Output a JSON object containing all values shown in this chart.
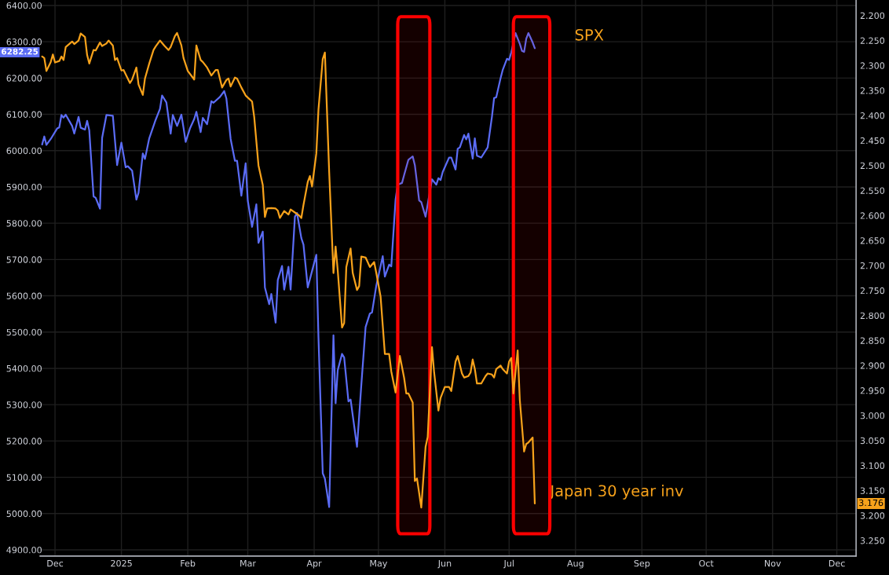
{
  "chart_data": {
    "type": "line",
    "xlim": [
      "2024-11-24",
      "2025-12-10"
    ],
    "xticks": [
      {
        "value": "2024-12-01",
        "label": "Dec"
      },
      {
        "value": "2025-01-01",
        "label": "2025"
      },
      {
        "value": "2025-02-01",
        "label": "Feb"
      },
      {
        "value": "2025-03-01",
        "label": "Mar"
      },
      {
        "value": "2025-04-01",
        "label": "Apr"
      },
      {
        "value": "2025-05-01",
        "label": "May"
      },
      {
        "value": "2025-06-01",
        "label": "Jun"
      },
      {
        "value": "2025-07-01",
        "label": "Jul"
      },
      {
        "value": "2025-08-01",
        "label": "Aug"
      },
      {
        "value": "2025-09-01",
        "label": "Sep"
      },
      {
        "value": "2025-10-01",
        "label": "Oct"
      },
      {
        "value": "2025-11-01",
        "label": "Nov"
      },
      {
        "value": "2025-12-01",
        "label": "Dec"
      }
    ],
    "ylim": [
      4883,
      6415
    ],
    "yticks": [
      {
        "value": 4900,
        "label": "4900.00"
      },
      {
        "value": 5000,
        "label": "5000.00"
      },
      {
        "value": 5100,
        "label": "5100.00"
      },
      {
        "value": 5200,
        "label": "5200.00"
      },
      {
        "value": 5300,
        "label": "5300.00"
      },
      {
        "value": 5400,
        "label": "5400.00"
      },
      {
        "value": 5500,
        "label": "5500.00"
      },
      {
        "value": 5600,
        "label": "5600.00"
      },
      {
        "value": 5700,
        "label": "5700.00"
      },
      {
        "value": 5800,
        "label": "5800.00"
      },
      {
        "value": 5900,
        "label": "5900.00"
      },
      {
        "value": 6000,
        "label": "6000.00"
      },
      {
        "value": 6100,
        "label": "6100.00"
      },
      {
        "value": 6200,
        "label": "6200.00"
      },
      {
        "value": 6300,
        "label": "6300.00"
      },
      {
        "value": 6400,
        "label": "6400.00"
      }
    ],
    "y2lim": [
      3.281,
      2.169
    ],
    "y2ticks": [
      {
        "value": 2.2,
        "label": "2.200"
      },
      {
        "value": 2.25,
        "label": "2.250"
      },
      {
        "value": 2.3,
        "label": "2.300"
      },
      {
        "value": 2.35,
        "label": "2.350"
      },
      {
        "value": 2.4,
        "label": "2.400"
      },
      {
        "value": 2.45,
        "label": "2.450"
      },
      {
        "value": 2.5,
        "label": "2.500"
      },
      {
        "value": 2.55,
        "label": "2.550"
      },
      {
        "value": 2.6,
        "label": "2.600"
      },
      {
        "value": 2.65,
        "label": "2.650"
      },
      {
        "value": 2.7,
        "label": "2.700"
      },
      {
        "value": 2.75,
        "label": "2.750"
      },
      {
        "value": 2.8,
        "label": "2.800"
      },
      {
        "value": 2.85,
        "label": "2.850"
      },
      {
        "value": 2.9,
        "label": "2.900"
      },
      {
        "value": 2.95,
        "label": "2.950"
      },
      {
        "value": 3.0,
        "label": "3.000"
      },
      {
        "value": 3.05,
        "label": "3.050"
      },
      {
        "value": 3.1,
        "label": "3.100"
      },
      {
        "value": 3.15,
        "label": "3.150"
      },
      {
        "value": 3.2,
        "label": "3.200"
      },
      {
        "value": 3.25,
        "label": "3.250"
      }
    ],
    "grid": true,
    "bands": [
      {
        "axis": "x",
        "from": "2025-05-10",
        "to": "2025-05-25",
        "color": "#ff0000"
      },
      {
        "axis": "x",
        "from": "2025-07-03",
        "to": "2025-07-20",
        "color": "#ff0000"
      }
    ],
    "annotations": [
      "SPX",
      "Japan 30 year inv",
      "6282.25",
      "3.176"
    ],
    "series": [
      {
        "color": "#5b6cf5",
        "axis": "y",
        "x": [
          "2024-11-25",
          "2024-11-26",
          "2024-11-27",
          "2024-11-29",
          "2024-12-02",
          "2024-12-03",
          "2024-12-04",
          "2024-12-05",
          "2024-12-06",
          "2024-12-09",
          "2024-12-10",
          "2024-12-12",
          "2024-12-13",
          "2024-12-15",
          "2024-12-16",
          "2024-12-17",
          "2024-12-19",
          "2024-12-20",
          "2024-12-22",
          "2024-12-23",
          "2024-12-25",
          "2024-12-28",
          "2024-12-30",
          "2025-01-01",
          "2025-01-03",
          "2025-01-04",
          "2025-01-06",
          "2025-01-08",
          "2025-01-09",
          "2025-01-11",
          "2025-01-12",
          "2025-01-14",
          "2025-01-17",
          "2025-01-19",
          "2025-01-20",
          "2025-01-22",
          "2025-01-24",
          "2025-01-25",
          "2025-01-27",
          "2025-01-29",
          "2025-01-30",
          "2025-01-31",
          "2025-02-02",
          "2025-02-04",
          "2025-02-05",
          "2025-02-07",
          "2025-02-08",
          "2025-02-10",
          "2025-02-12",
          "2025-02-13",
          "2025-02-16",
          "2025-02-18",
          "2025-02-19",
          "2025-02-21",
          "2025-02-23",
          "2025-02-24",
          "2025-02-26",
          "2025-02-28",
          "2025-03-01",
          "2025-03-03",
          "2025-03-05",
          "2025-03-06",
          "2025-03-08",
          "2025-03-09",
          "2025-03-11",
          "2025-03-12",
          "2025-03-14",
          "2025-03-15",
          "2025-03-17",
          "2025-03-18",
          "2025-03-20",
          "2025-03-21",
          "2025-03-23",
          "2025-03-24",
          "2025-03-26",
          "2025-03-27",
          "2025-03-29",
          "2025-03-31",
          "2025-04-02",
          "2025-04-03",
          "2025-04-05",
          "2025-04-06",
          "2025-04-08",
          "2025-04-10",
          "2025-04-11",
          "2025-04-12",
          "2025-04-14",
          "2025-04-15",
          "2025-04-17",
          "2025-04-18",
          "2025-04-21",
          "2025-04-23",
          "2025-04-25",
          "2025-04-27",
          "2025-04-28",
          "2025-04-30",
          "2025-05-03",
          "2025-05-04",
          "2025-05-06",
          "2025-05-07",
          "2025-05-09",
          "2025-05-10",
          "2025-05-12",
          "2025-05-13",
          "2025-05-15",
          "2025-05-17",
          "2025-05-18",
          "2025-05-20",
          "2025-05-21",
          "2025-05-23",
          "2025-05-25",
          "2025-05-26",
          "2025-05-28",
          "2025-05-29",
          "2025-05-30",
          "2025-05-31",
          "2025-06-03",
          "2025-06-04",
          "2025-06-06",
          "2025-06-07",
          "2025-06-08",
          "2025-06-10",
          "2025-06-11",
          "2025-06-12",
          "2025-06-14",
          "2025-06-15",
          "2025-06-16",
          "2025-06-18",
          "2025-06-21",
          "2025-06-23",
          "2025-06-24",
          "2025-06-25",
          "2025-06-27",
          "2025-06-28",
          "2025-06-30",
          "2025-07-01",
          "2025-07-02",
          "2025-07-04",
          "2025-07-06",
          "2025-07-07",
          "2025-07-08",
          "2025-07-09",
          "2025-07-10",
          "2025-07-12",
          "2025-07-13"
        ],
        "values": [
          6017,
          6039,
          6016,
          6032,
          6061,
          6064,
          6098,
          6091,
          6099,
          6068,
          6047,
          6093,
          6063,
          6058,
          6082,
          6056,
          5874,
          5870,
          5840,
          6035,
          6098,
          6096,
          5960,
          6022,
          5954,
          5957,
          5945,
          5865,
          5884,
          5992,
          5977,
          6034,
          6085,
          6115,
          6152,
          6133,
          6047,
          6098,
          6068,
          6099,
          6063,
          6024,
          6061,
          6087,
          6107,
          6051,
          6090,
          6073,
          6136,
          6132,
          6148,
          6164,
          6144,
          6032,
          5972,
          5972,
          5876,
          5965,
          5862,
          5790,
          5852,
          5746,
          5777,
          5623,
          5577,
          5605,
          5526,
          5643,
          5682,
          5617,
          5680,
          5617,
          5818,
          5828,
          5759,
          5741,
          5623,
          5668,
          5713,
          5486,
          5111,
          5096,
          5018,
          5491,
          5304,
          5395,
          5440,
          5430,
          5309,
          5314,
          5184,
          5354,
          5514,
          5551,
          5554,
          5628,
          5709,
          5653,
          5686,
          5681,
          5865,
          5906,
          5911,
          5933,
          5975,
          5984,
          5960,
          5863,
          5858,
          5818,
          null,
          5921,
          5906,
          5924,
          5919,
          5941,
          5981,
          5981,
          5948,
          6005,
          6009,
          6043,
          6031,
          6047,
          5978,
          6034,
          5986,
          5981,
          6009,
          6094,
          6145,
          6147,
          6199,
          6222,
          6253,
          6250,
          6270,
          6324,
          6294,
          6275,
          6272,
          6308,
          6324,
          6298,
          6282
        ]
      },
      {
        "color": "#f7a21b",
        "axis": "y2",
        "x": [
          "2024-11-25",
          "2024-11-26",
          "2024-11-27",
          "2024-11-29",
          "2024-11-30",
          "2024-12-01",
          "2024-12-03",
          "2024-12-04",
          "2024-12-05",
          "2024-12-06",
          "2024-12-09",
          "2024-12-10",
          "2024-12-12",
          "2024-12-13",
          "2024-12-15",
          "2024-12-16",
          "2024-12-17",
          "2024-12-19",
          "2024-12-20",
          "2024-12-22",
          "2024-12-23",
          "2024-12-25",
          "2024-12-26",
          "2024-12-28",
          "2024-12-29",
          "2024-12-30",
          "2025-01-01",
          "2025-01-02",
          "2025-01-05",
          "2025-01-06",
          "2025-01-08",
          "2025-01-09",
          "2025-01-11",
          "2025-01-12",
          "2025-01-14",
          "2025-01-16",
          "2025-01-17",
          "2025-01-19",
          "2025-01-21",
          "2025-01-23",
          "2025-01-24",
          "2025-01-26",
          "2025-01-27",
          "2025-01-29",
          "2025-01-30",
          "2025-02-01",
          "2025-02-04",
          "2025-02-05",
          "2025-02-07",
          "2025-02-08",
          "2025-02-10",
          "2025-02-12",
          "2025-02-14",
          "2025-02-15",
          "2025-02-17",
          "2025-02-19",
          "2025-02-20",
          "2025-02-21",
          "2025-02-23",
          "2025-02-24",
          "2025-02-26",
          "2025-02-28",
          "2025-03-03",
          "2025-03-04",
          "2025-03-06",
          "2025-03-08",
          "2025-03-09",
          "2025-03-10",
          "2025-03-12",
          "2025-03-14",
          "2025-03-15",
          "2025-03-16",
          "2025-03-18",
          "2025-03-20",
          "2025-03-21",
          "2025-03-23",
          "2025-03-25",
          "2025-03-26",
          "2025-03-27",
          "2025-03-29",
          "2025-03-30",
          "2025-03-31",
          "2025-04-02",
          "2025-04-03",
          "2025-04-05",
          "2025-04-06",
          "2025-04-08",
          "2025-04-10",
          "2025-04-11",
          "2025-04-12",
          "2025-04-14",
          "2025-04-15",
          "2025-04-16",
          "2025-04-18",
          "2025-04-19",
          "2025-04-21",
          "2025-04-22",
          "2025-04-23",
          "2025-04-25",
          "2025-04-27",
          "2025-04-29",
          "2025-04-30",
          "2025-05-02",
          "2025-05-04",
          "2025-05-06",
          "2025-05-07",
          "2025-05-09",
          "2025-05-11",
          "2025-05-13",
          "2025-05-14",
          "2025-05-15",
          "2025-05-17",
          "2025-05-18",
          "2025-05-19",
          "2025-05-21",
          "2025-05-23",
          "2025-05-24",
          "2025-05-26",
          "2025-05-27",
          "2025-05-29",
          "2025-05-30",
          "2025-06-01",
          "2025-06-03",
          "2025-06-04",
          "2025-06-06",
          "2025-06-07",
          "2025-06-09",
          "2025-06-10",
          "2025-06-12",
          "2025-06-13",
          "2025-06-14",
          "2025-06-15",
          "2025-06-16",
          "2025-06-18",
          "2025-06-20",
          "2025-06-21",
          "2025-06-23",
          "2025-06-24",
          "2025-06-25",
          "2025-06-27",
          "2025-06-28",
          "2025-06-30",
          "2025-07-01",
          "2025-07-02",
          "2025-07-03",
          "2025-07-05",
          "2025-07-06",
          "2025-07-08",
          "2025-07-09",
          "2025-07-10",
          "2025-07-12",
          "2025-07-13"
        ],
        "values": [
          2.282,
          2.285,
          2.311,
          2.293,
          2.278,
          2.294,
          2.291,
          2.282,
          2.289,
          2.263,
          2.252,
          2.257,
          2.25,
          2.236,
          2.243,
          2.279,
          2.296,
          2.269,
          2.27,
          2.254,
          2.261,
          2.256,
          2.25,
          2.26,
          2.289,
          2.285,
          2.31,
          2.309,
          2.335,
          2.328,
          2.304,
          2.338,
          2.359,
          2.326,
          2.296,
          2.269,
          2.262,
          2.25,
          2.26,
          2.269,
          2.263,
          2.241,
          2.235,
          2.26,
          2.285,
          2.311,
          2.328,
          2.26,
          2.289,
          2.293,
          2.304,
          2.32,
          2.309,
          2.309,
          2.344,
          2.329,
          2.326,
          2.342,
          2.324,
          2.326,
          2.344,
          2.36,
          2.372,
          2.403,
          2.5,
          2.539,
          2.603,
          2.586,
          2.585,
          2.586,
          2.59,
          2.605,
          2.591,
          2.598,
          2.588,
          2.594,
          2.6,
          2.605,
          2.579,
          2.533,
          2.521,
          2.542,
          2.476,
          2.388,
          2.287,
          2.274,
          2.513,
          2.715,
          2.662,
          2.71,
          2.824,
          2.815,
          2.703,
          2.666,
          2.715,
          2.749,
          2.741,
          2.682,
          2.684,
          2.703,
          2.693,
          2.715,
          2.762,
          2.877,
          2.877,
          2.912,
          2.954,
          2.881,
          2.925,
          2.956,
          2.956,
          2.974,
          3.131,
          3.126,
          3.184,
          3.063,
          3.043,
          2.863,
          2.914,
          2.99,
          2.965,
          2.943,
          2.943,
          2.951,
          2.892,
          2.881,
          2.916,
          2.924,
          2.921,
          2.914,
          2.888,
          2.907,
          2.936,
          2.936,
          2.921,
          2.916,
          2.918,
          2.924,
          2.907,
          2.9,
          2.907,
          2.916,
          2.892,
          2.885,
          2.956,
          2.87,
          2.969,
          3.072,
          3.057,
          3.054,
          3.044,
          3.176
        ]
      }
    ]
  }
}
